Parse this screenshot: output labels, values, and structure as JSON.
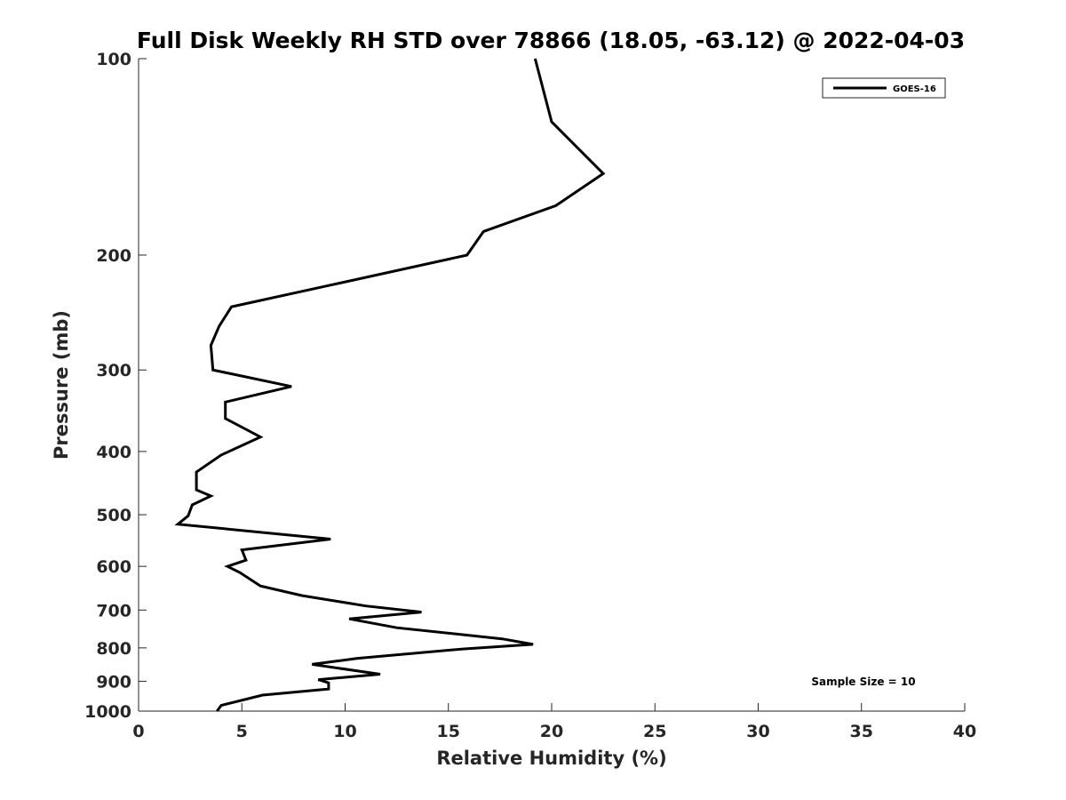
{
  "chart_data": {
    "type": "line",
    "title": "Full Disk Weekly RH STD over 78866 (18.05, -63.12) @ 2022-04-03",
    "xlabel": "Relative Humidity (%)",
    "ylabel": "Pressure (mb)",
    "xlim": [
      0,
      40
    ],
    "ylim": [
      100,
      1000
    ],
    "yscale": "log",
    "y_reversed": true,
    "x_ticks": [
      "0",
      "5",
      "10",
      "15",
      "20",
      "25",
      "30",
      "35",
      "40"
    ],
    "y_ticks": [
      "100",
      "200",
      "300",
      "400",
      "500",
      "600",
      "700",
      "800",
      "900",
      "1000"
    ],
    "legend": {
      "position": "top-right",
      "entries": [
        "GOES-16"
      ]
    },
    "annotation": "Sample Size = 10",
    "grid": false,
    "series": [
      {
        "name": "GOES-16",
        "color": "#000000",
        "points": [
          [
            19.2,
            100
          ],
          [
            20.0,
            125
          ],
          [
            22.5,
            150
          ],
          [
            20.2,
            168
          ],
          [
            16.7,
            184
          ],
          [
            15.9,
            200
          ],
          [
            9.4,
            222
          ],
          [
            4.5,
            240
          ],
          [
            3.9,
            257
          ],
          [
            3.5,
            275
          ],
          [
            3.6,
            300
          ],
          [
            7.4,
            318
          ],
          [
            4.2,
            336
          ],
          [
            4.2,
            356
          ],
          [
            5.9,
            380
          ],
          [
            4.0,
            405
          ],
          [
            2.8,
            430
          ],
          [
            2.8,
            458
          ],
          [
            3.5,
            468
          ],
          [
            2.6,
            483
          ],
          [
            2.4,
            502
          ],
          [
            1.9,
            517
          ],
          [
            9.3,
            545
          ],
          [
            5.0,
            566
          ],
          [
            5.2,
            587
          ],
          [
            4.3,
            600
          ],
          [
            4.9,
            613
          ],
          [
            5.9,
            643
          ],
          [
            7.9,
            665
          ],
          [
            11.0,
            690
          ],
          [
            13.7,
            705
          ],
          [
            10.2,
            722
          ],
          [
            12.5,
            745
          ],
          [
            17.6,
            775
          ],
          [
            19.1,
            790
          ],
          [
            15.7,
            803
          ],
          [
            10.6,
            830
          ],
          [
            8.4,
            848
          ],
          [
            11.7,
            878
          ],
          [
            8.7,
            895
          ],
          [
            9.2,
            905
          ],
          [
            9.2,
            925
          ],
          [
            6.0,
            945
          ],
          [
            4.0,
            980
          ],
          [
            3.8,
            1000
          ]
        ]
      }
    ]
  }
}
